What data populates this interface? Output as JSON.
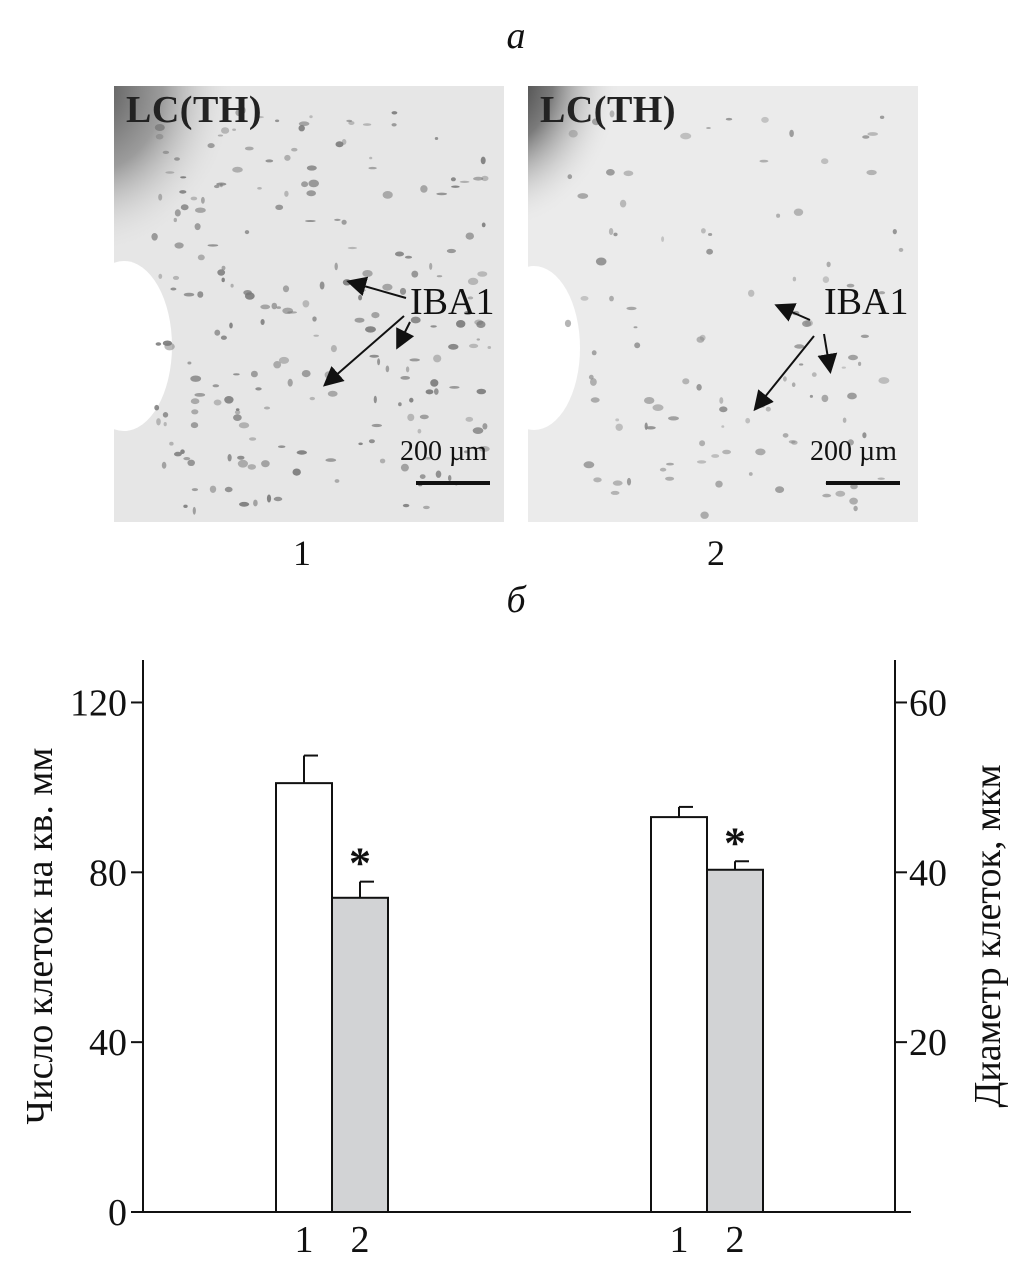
{
  "panel_a_label": "а",
  "panel_b_label": "б",
  "micrographs": [
    {
      "title": "LC(TH)",
      "marker": "IBA1",
      "scale": "200 µm",
      "number": "1"
    },
    {
      "title": "LC(TH)",
      "marker": "IBA1",
      "scale": "200 µm",
      "number": "2"
    }
  ],
  "chart_data": {
    "type": "bar",
    "title": "",
    "ylabel_left": "Число клеток на кв. мм",
    "ylabel_right": "Диаметр клеток, мкм",
    "ylim_left": [
      0,
      130
    ],
    "ylim_right": [
      0,
      65
    ],
    "left_ticks": [
      "0",
      "40",
      "80",
      "120"
    ],
    "right_ticks": [
      "20",
      "40",
      "60"
    ],
    "groups": [
      {
        "axis": "left",
        "categories": [
          "1",
          "2"
        ],
        "values": [
          101,
          74
        ],
        "errors": [
          6.5,
          3.8
        ],
        "colors": [
          "#ffffff",
          "#d2d3d5"
        ],
        "significance": [
          "",
          "*"
        ]
      },
      {
        "axis": "right",
        "categories": [
          "1",
          "2"
        ],
        "values": [
          46.5,
          40.3
        ],
        "errors": [
          1.2,
          1.0
        ],
        "colors": [
          "#ffffff",
          "#d2d3d5"
        ],
        "significance": [
          "",
          "*"
        ]
      }
    ]
  }
}
